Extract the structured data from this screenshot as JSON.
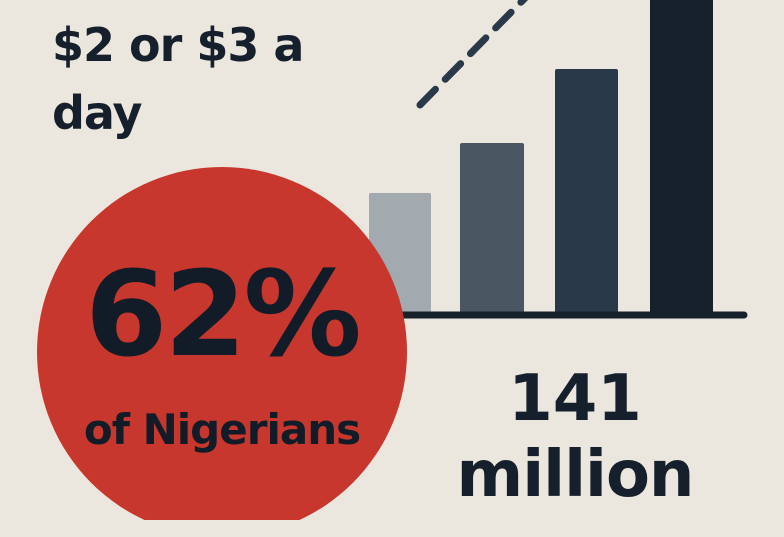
{
  "headline": {
    "line1": "$2 or $3 a",
    "line2": "day"
  },
  "circle": {
    "percent": "62%",
    "label": "of Nigerians"
  },
  "stat": {
    "number": "141",
    "unit": "million"
  },
  "colors": {
    "background": "#ece7de",
    "circle": "#c8372d",
    "text": "#16202c",
    "bars": [
      "#a3aaaf",
      "#4b5663",
      "#2a394a",
      "#16212c"
    ]
  },
  "icons": {
    "trend": "dashed-trend-line"
  }
}
